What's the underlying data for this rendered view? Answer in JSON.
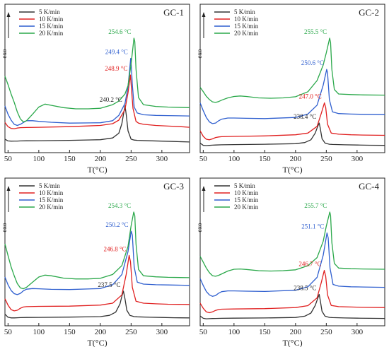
{
  "chart_data": [
    {
      "type": "line",
      "title": "GC-1",
      "xlabel": "T(°C)",
      "ylabel": "exo",
      "xlim": [
        45,
        345
      ],
      "xticks": [
        50,
        100,
        150,
        200,
        250,
        300
      ],
      "yticks": "none",
      "grid": false,
      "legend_position": "top-left",
      "series": [
        {
          "name": "5 K/min",
          "color": "#333333",
          "peak_label": "240.2 °C",
          "peak_x": 240.2,
          "x": [
            45,
            50,
            55,
            60,
            65,
            70,
            80,
            100,
            150,
            200,
            220,
            230,
            235,
            238,
            240.2,
            242,
            245,
            250,
            255,
            260,
            280,
            300,
            320,
            345
          ],
          "y": [
            0.09,
            0.075,
            0.073,
            0.074,
            0.074,
            0.075,
            0.076,
            0.077,
            0.08,
            0.085,
            0.1,
            0.14,
            0.22,
            0.31,
            0.37,
            0.3,
            0.16,
            0.09,
            0.082,
            0.08,
            0.076,
            0.073,
            0.07,
            0.066
          ]
        },
        {
          "name": "10 K/min",
          "color": "#e02020",
          "peak_label": "248.9 °C",
          "peak_x": 248.9,
          "x": [
            45,
            50,
            55,
            60,
            65,
            70,
            80,
            100,
            150,
            200,
            220,
            230,
            240,
            245,
            248.9,
            250,
            253,
            258,
            262,
            270,
            290,
            310,
            330,
            345
          ],
          "y": [
            0.23,
            0.195,
            0.18,
            0.178,
            0.183,
            0.187,
            0.188,
            0.19,
            0.195,
            0.205,
            0.22,
            0.25,
            0.34,
            0.48,
            0.63,
            0.56,
            0.35,
            0.24,
            0.225,
            0.215,
            0.205,
            0.2,
            0.195,
            0.19
          ]
        },
        {
          "name": "15 K/min",
          "color": "#2f5fcf",
          "peak_label": "249.4 °C",
          "peak_x": 249.4,
          "x": [
            45,
            50,
            55,
            60,
            65,
            70,
            75,
            80,
            90,
            100,
            120,
            150,
            200,
            220,
            230,
            240,
            245,
            249.4,
            250,
            252,
            255,
            260,
            270,
            290,
            310,
            345
          ],
          "y": [
            0.37,
            0.3,
            0.25,
            0.215,
            0.205,
            0.215,
            0.23,
            0.245,
            0.245,
            0.24,
            0.232,
            0.225,
            0.228,
            0.245,
            0.29,
            0.39,
            0.53,
            0.77,
            0.74,
            0.55,
            0.36,
            0.31,
            0.295,
            0.29,
            0.288,
            0.285
          ]
        },
        {
          "name": "20 K/min",
          "color": "#2aa84a",
          "peak_label": "254.6 °C",
          "peak_x": 254.6,
          "x": [
            45,
            50,
            55,
            60,
            65,
            70,
            75,
            80,
            90,
            100,
            110,
            120,
            140,
            160,
            180,
            200,
            220,
            230,
            240,
            245,
            250,
            254.6,
            256,
            258,
            262,
            270,
            290,
            310,
            345
          ],
          "y": [
            0.62,
            0.55,
            0.47,
            0.4,
            0.32,
            0.26,
            0.235,
            0.245,
            0.3,
            0.36,
            0.385,
            0.375,
            0.355,
            0.345,
            0.345,
            0.35,
            0.38,
            0.41,
            0.47,
            0.54,
            0.72,
            0.94,
            0.91,
            0.68,
            0.44,
            0.38,
            0.365,
            0.36,
            0.355
          ]
        }
      ]
    },
    {
      "type": "line",
      "title": "GC-2",
      "xlabel": "T(°C)",
      "ylabel": "exo",
      "xlim": [
        45,
        345
      ],
      "xticks": [
        50,
        100,
        150,
        200,
        250,
        300
      ],
      "yticks": "none",
      "grid": false,
      "legend_position": "top-left",
      "series": [
        {
          "name": "5 K/min",
          "color": "#333333",
          "peak_label": "238.4 °C",
          "peak_x": 238.4,
          "x": [
            45,
            50,
            55,
            60,
            65,
            70,
            80,
            100,
            150,
            200,
            215,
            225,
            232,
            236,
            238.4,
            240,
            243,
            248,
            255,
            260,
            280,
            300,
            320,
            345
          ],
          "y": [
            0.06,
            0.04,
            0.038,
            0.04,
            0.042,
            0.043,
            0.045,
            0.047,
            0.05,
            0.055,
            0.065,
            0.09,
            0.15,
            0.21,
            0.24,
            0.2,
            0.1,
            0.06,
            0.05,
            0.048,
            0.045,
            0.043,
            0.041,
            0.04
          ]
        },
        {
          "name": "10 K/min",
          "color": "#e02020",
          "peak_label": "247.0 °C",
          "peak_x": 247.0,
          "x": [
            45,
            50,
            55,
            60,
            65,
            70,
            75,
            80,
            100,
            150,
            200,
            220,
            235,
            242,
            247.0,
            249,
            252,
            258,
            270,
            290,
            310,
            345
          ],
          "y": [
            0.17,
            0.12,
            0.095,
            0.09,
            0.098,
            0.11,
            0.115,
            0.118,
            0.12,
            0.125,
            0.135,
            0.15,
            0.21,
            0.33,
            0.42,
            0.38,
            0.23,
            0.15,
            0.14,
            0.135,
            0.132,
            0.13
          ]
        },
        {
          "name": "15 K/min",
          "color": "#2f5fcf",
          "peak_label": "250.6 °C",
          "peak_x": 250.6,
          "x": [
            45,
            50,
            55,
            60,
            65,
            70,
            75,
            80,
            90,
            100,
            120,
            150,
            200,
            220,
            235,
            245,
            250.6,
            252,
            255,
            260,
            270,
            290,
            310,
            345
          ],
          "y": [
            0.42,
            0.35,
            0.29,
            0.25,
            0.235,
            0.24,
            0.26,
            0.275,
            0.285,
            0.285,
            0.282,
            0.28,
            0.29,
            0.32,
            0.4,
            0.58,
            0.72,
            0.69,
            0.45,
            0.34,
            0.325,
            0.32,
            0.318,
            0.315
          ]
        },
        {
          "name": "20 K/min",
          "color": "#2aa84a",
          "peak_label": "255.5 °C",
          "peak_x": 255.5,
          "x": [
            45,
            50,
            55,
            60,
            65,
            70,
            75,
            80,
            90,
            100,
            110,
            120,
            140,
            160,
            180,
            200,
            220,
            235,
            245,
            250,
            255.5,
            257,
            259,
            263,
            270,
            290,
            310,
            345
          ],
          "y": [
            0.56,
            0.52,
            0.48,
            0.45,
            0.43,
            0.425,
            0.432,
            0.445,
            0.465,
            0.478,
            0.482,
            0.478,
            0.465,
            0.462,
            0.465,
            0.475,
            0.52,
            0.62,
            0.76,
            0.87,
            1.0,
            0.96,
            0.72,
            0.54,
            0.5,
            0.495,
            0.492,
            0.49
          ]
        }
      ]
    },
    {
      "type": "line",
      "title": "GC-3",
      "xlabel": "T(°C)",
      "ylabel": "exo",
      "xlim": [
        45,
        345
      ],
      "xticks": [
        50,
        100,
        150,
        200,
        250,
        300
      ],
      "yticks": "none",
      "grid": false,
      "legend_position": "top-left",
      "series": [
        {
          "name": "5 K/min",
          "color": "#333333",
          "peak_label": "237.5 °C",
          "peak_x": 237.5,
          "x": [
            45,
            50,
            55,
            60,
            65,
            70,
            80,
            100,
            150,
            200,
            215,
            225,
            232,
            235,
            237.5,
            240,
            243,
            248,
            255,
            260,
            280,
            300,
            320,
            345
          ],
          "y": [
            0.07,
            0.045,
            0.04,
            0.04,
            0.041,
            0.042,
            0.043,
            0.044,
            0.046,
            0.05,
            0.06,
            0.085,
            0.15,
            0.21,
            0.25,
            0.19,
            0.1,
            0.06,
            0.05,
            0.048,
            0.045,
            0.043,
            0.041,
            0.04
          ]
        },
        {
          "name": "10 K/min",
          "color": "#e02020",
          "peak_label": "246.8 °C",
          "peak_x": 246.8,
          "x": [
            45,
            50,
            55,
            60,
            65,
            70,
            75,
            80,
            100,
            150,
            200,
            220,
            235,
            242,
            246.8,
            249,
            252,
            258,
            270,
            290,
            310,
            345
          ],
          "y": [
            0.19,
            0.14,
            0.105,
            0.095,
            0.1,
            0.115,
            0.125,
            0.128,
            0.13,
            0.132,
            0.14,
            0.155,
            0.22,
            0.38,
            0.53,
            0.48,
            0.28,
            0.17,
            0.155,
            0.15,
            0.147,
            0.145
          ]
        },
        {
          "name": "15 K/min",
          "color": "#2f5fcf",
          "peak_label": "250.2 °C",
          "peak_x": 250.2,
          "x": [
            45,
            50,
            55,
            60,
            65,
            70,
            75,
            80,
            90,
            100,
            120,
            150,
            200,
            220,
            235,
            245,
            250.2,
            252,
            255,
            260,
            270,
            290,
            310,
            345
          ],
          "y": [
            0.36,
            0.3,
            0.255,
            0.23,
            0.222,
            0.232,
            0.252,
            0.265,
            0.27,
            0.268,
            0.264,
            0.262,
            0.27,
            0.3,
            0.38,
            0.56,
            0.72,
            0.69,
            0.44,
            0.32,
            0.305,
            0.3,
            0.298,
            0.295
          ]
        },
        {
          "name": "20 K/min",
          "color": "#2aa84a",
          "peak_label": "254.3 °C",
          "peak_x": 254.3,
          "x": [
            45,
            50,
            55,
            60,
            65,
            70,
            75,
            80,
            90,
            100,
            110,
            120,
            140,
            160,
            180,
            200,
            220,
            235,
            245,
            250,
            254.3,
            256,
            258,
            262,
            270,
            290,
            310,
            345
          ],
          "y": [
            0.62,
            0.53,
            0.44,
            0.37,
            0.31,
            0.275,
            0.268,
            0.28,
            0.32,
            0.36,
            0.375,
            0.37,
            0.352,
            0.345,
            0.345,
            0.35,
            0.38,
            0.45,
            0.6,
            0.76,
            0.87,
            0.84,
            0.62,
            0.42,
            0.37,
            0.362,
            0.358,
            0.355
          ]
        }
      ]
    },
    {
      "type": "line",
      "title": "GC-4",
      "xlabel": "T(°C)",
      "ylabel": "exo",
      "xlim": [
        45,
        345
      ],
      "xticks": [
        50,
        100,
        150,
        200,
        250,
        300
      ],
      "yticks": "none",
      "grid": false,
      "legend_position": "top-left",
      "series": [
        {
          "name": "5 K/min",
          "color": "#333333",
          "peak_label": "238.5 °C",
          "peak_x": 238.5,
          "x": [
            45,
            50,
            55,
            60,
            65,
            70,
            80,
            100,
            150,
            200,
            215,
            225,
            232,
            236,
            238.5,
            240,
            243,
            248,
            255,
            260,
            280,
            300,
            320,
            345
          ],
          "y": [
            0.06,
            0.04,
            0.036,
            0.037,
            0.038,
            0.039,
            0.04,
            0.041,
            0.043,
            0.047,
            0.058,
            0.085,
            0.15,
            0.21,
            0.245,
            0.2,
            0.1,
            0.058,
            0.048,
            0.046,
            0.043,
            0.041,
            0.04,
            0.039
          ]
        },
        {
          "name": "10 K/min",
          "color": "#e02020",
          "peak_label": "246.7 °C",
          "peak_x": 246.7,
          "x": [
            45,
            50,
            55,
            60,
            65,
            70,
            75,
            80,
            100,
            150,
            200,
            220,
            235,
            242,
            246.7,
            249,
            252,
            258,
            270,
            290,
            310,
            345
          ],
          "y": [
            0.17,
            0.125,
            0.095,
            0.088,
            0.095,
            0.108,
            0.115,
            0.118,
            0.12,
            0.123,
            0.132,
            0.148,
            0.215,
            0.35,
            0.45,
            0.4,
            0.24,
            0.15,
            0.14,
            0.137,
            0.134,
            0.132
          ]
        },
        {
          "name": "15 K/min",
          "color": "#2f5fcf",
          "peak_label": "251.1 °C",
          "peak_x": 251.1,
          "x": [
            45,
            50,
            55,
            60,
            65,
            70,
            75,
            80,
            90,
            100,
            120,
            150,
            200,
            220,
            235,
            245,
            251.1,
            253,
            256,
            261,
            270,
            290,
            310,
            345
          ],
          "y": [
            0.38,
            0.32,
            0.27,
            0.24,
            0.228,
            0.235,
            0.255,
            0.268,
            0.275,
            0.275,
            0.272,
            0.27,
            0.28,
            0.31,
            0.39,
            0.58,
            0.77,
            0.73,
            0.47,
            0.33,
            0.315,
            0.31,
            0.308,
            0.305
          ]
        },
        {
          "name": "20 K/min",
          "color": "#2aa84a",
          "peak_label": "255.7 °C",
          "peak_x": 255.7,
          "x": [
            45,
            50,
            55,
            60,
            65,
            70,
            75,
            80,
            90,
            100,
            110,
            120,
            140,
            160,
            180,
            200,
            220,
            235,
            245,
            250,
            255.7,
            257,
            259,
            263,
            270,
            290,
            310,
            345
          ],
          "y": [
            0.57,
            0.52,
            0.47,
            0.43,
            0.405,
            0.4,
            0.408,
            0.42,
            0.445,
            0.46,
            0.462,
            0.458,
            0.448,
            0.445,
            0.448,
            0.455,
            0.49,
            0.56,
            0.7,
            0.83,
            0.95,
            0.92,
            0.69,
            0.51,
            0.47,
            0.465,
            0.462,
            0.46
          ]
        }
      ]
    }
  ]
}
